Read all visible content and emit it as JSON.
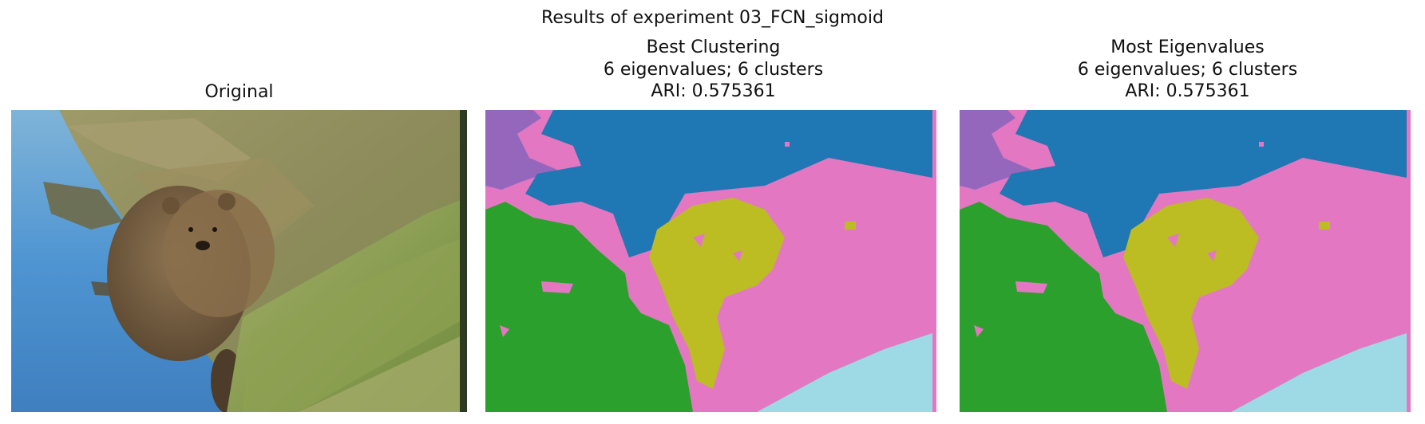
{
  "figure": {
    "title": "Results of experiment 03_FCN_sigmoid"
  },
  "panels": [
    {
      "title_lines": [
        "Original"
      ]
    },
    {
      "title_lines": [
        "Best Clustering",
        "6 eigenvalues; 6 clusters",
        "ARI: 0.575361"
      ]
    },
    {
      "title_lines": [
        "Most Eigenvalues",
        "6 eigenvalues; 6 clusters",
        "ARI: 0.575361"
      ]
    }
  ],
  "cluster_colors": {
    "purple": "#9467bd",
    "blue": "#1f77b4",
    "pink": "#e377c2",
    "green": "#2ca02c",
    "olive": "#bcbd22",
    "cyan": "#9edae5"
  }
}
